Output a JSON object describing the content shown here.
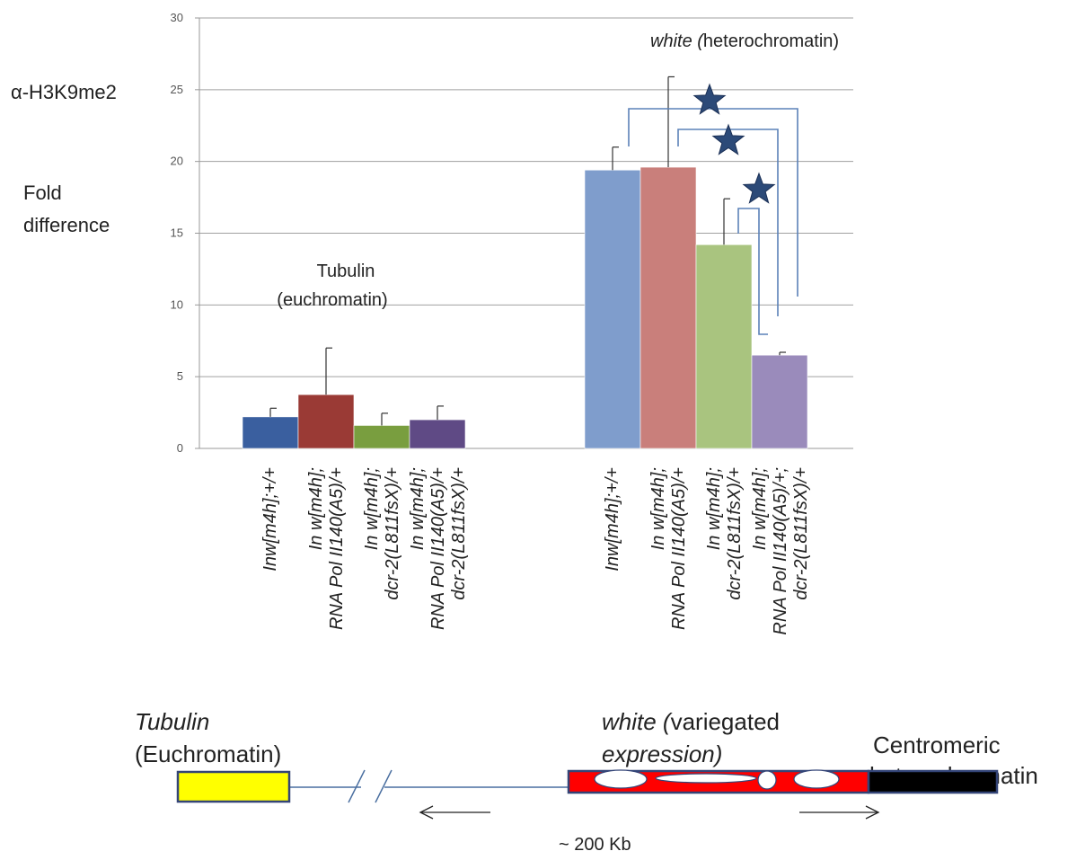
{
  "chart_data": {
    "type": "bar",
    "ylabel_prefix": "α-H3K9me2",
    "ylabel_line1": "Fold",
    "ylabel_line2": "difference",
    "ylim": [
      0,
      30
    ],
    "yticks": [
      "0",
      "5",
      "10",
      "15",
      "20",
      "25",
      "30"
    ],
    "grid": true,
    "groups": [
      {
        "name_line1": "Tubulin",
        "name_line2": "(euchromatin)",
        "bars": [
          {
            "label": [
              "Inw[m4h];+/+"
            ],
            "value": 2.2,
            "error": 0.6,
            "color": "#3a5f9f"
          },
          {
            "label": [
              "In w[m4h];",
              "RNA Pol II140(A5)/+"
            ],
            "value": 3.75,
            "error": 3.25,
            "color": "#9a3a35"
          },
          {
            "label": [
              "In w[m4h];",
              "dcr-2(L811fsX)/+"
            ],
            "value": 1.6,
            "error": 0.85,
            "color": "#799e3f"
          },
          {
            "label": [
              "In w[m4h];",
              "RNA Pol II140(A5)/+",
              "dcr-2(L811fsX)/+"
            ],
            "value": 2.0,
            "error": 0.95,
            "color": "#5f4a85"
          }
        ]
      },
      {
        "name_italic": "white (",
        "name_rest": "heterochromatin)",
        "bars": [
          {
            "label": [
              "Inw[m4h];+/+"
            ],
            "value": 19.4,
            "error": 1.6,
            "color": "#7f9dcc"
          },
          {
            "label": [
              "In w[m4h];",
              "RNA Pol II140(A5)/+"
            ],
            "value": 19.6,
            "error": 6.3,
            "color": "#c97f7b"
          },
          {
            "label": [
              "In w[m4h];",
              "dcr-2(L811fsX)/+"
            ],
            "value": 14.2,
            "error": 3.2,
            "color": "#a9c47f"
          },
          {
            "label": [
              "In w[m4h];",
              "RNA Pol II140(A5)/+;",
              "dcr-2(L811fsX)/+"
            ],
            "value": 6.5,
            "error": 0.2,
            "color": "#9a8bbb"
          }
        ]
      }
    ]
  },
  "diagram": {
    "tubulin_title": "Tubulin",
    "tubulin_sub": "(Euchromatin)",
    "white_title_italic": "white (",
    "white_title_rest": "variegated",
    "white_sub": "expression)",
    "centromeric_line1": "Centromeric",
    "centromeric_line2": "heterochromatin",
    "distance": "~ 200 Kb",
    "colors": {
      "gene_yellow": "#ffff00",
      "gene_red": "#ff0000",
      "hetero_black": "#000000",
      "outline": "#334477"
    }
  }
}
